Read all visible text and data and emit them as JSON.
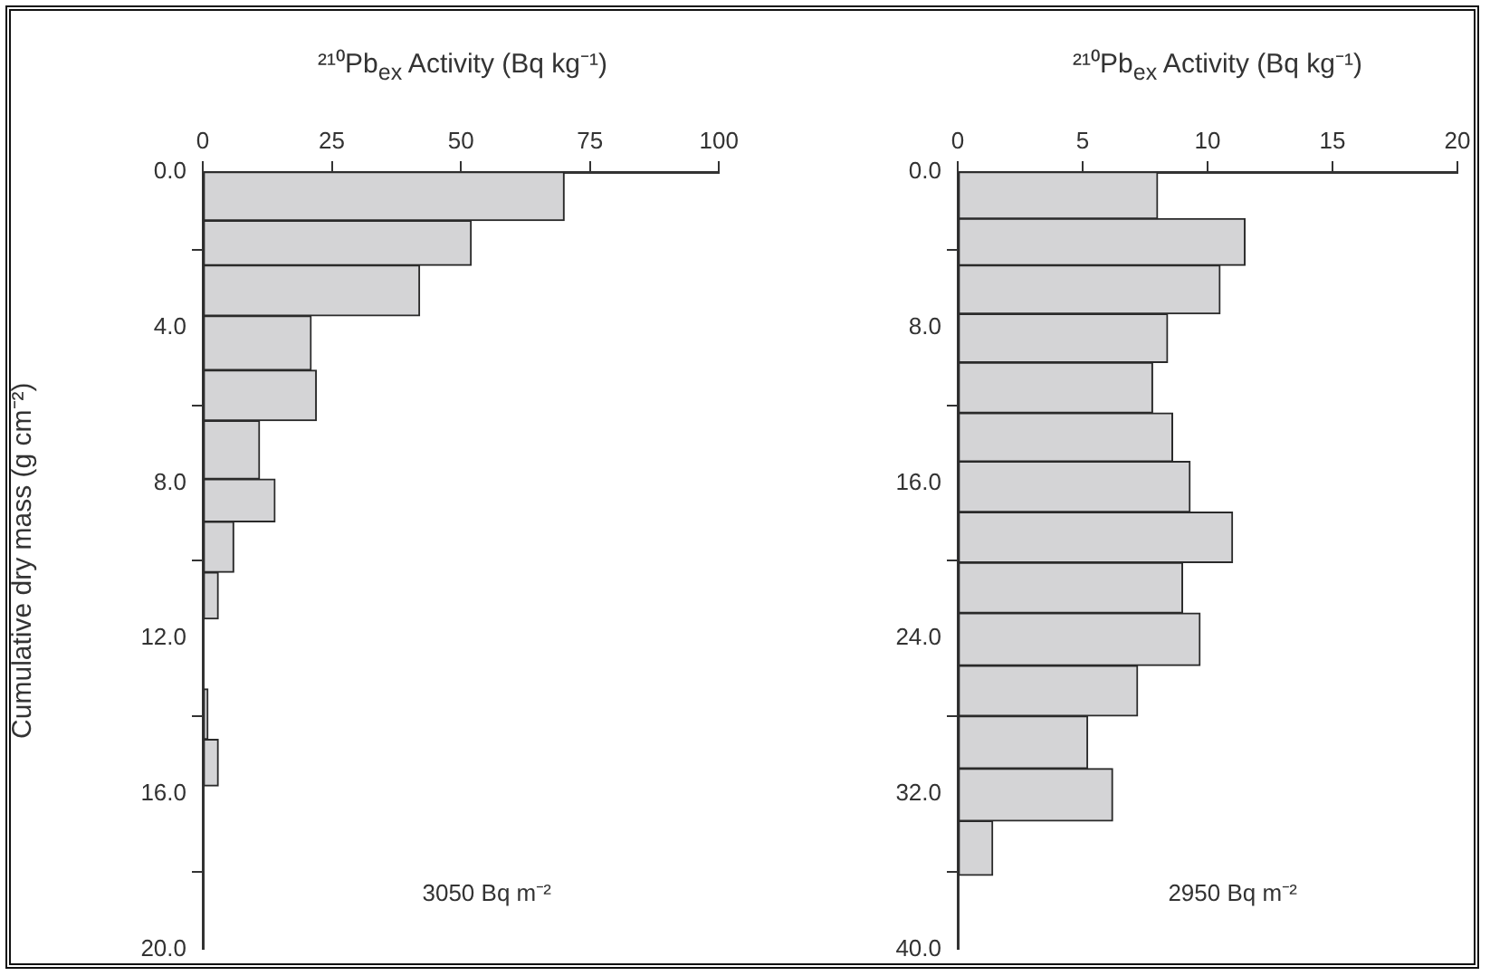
{
  "chart_data": [
    {
      "type": "histogram",
      "orientation": "horizontal",
      "xlabel": "²¹⁰Pb$_{ex}$ Activity (Bq kg⁻¹)",
      "ylabel": "Cumulative dry mass (g cm⁻²)",
      "bins": [
        0,
        1.25,
        2.4,
        3.7,
        5.1,
        6.4,
        7.9,
        9.0,
        10.3,
        11.5,
        13.3,
        14.6,
        15.8
      ],
      "values": [
        70,
        52,
        42,
        21,
        22,
        11,
        14,
        6,
        3,
        null,
        1,
        3
      ],
      "color": "#d4d4d6",
      "xlim": [
        0,
        100
      ],
      "xticks": [
        0,
        25,
        50,
        75,
        100
      ],
      "ylim": [
        20,
        0
      ],
      "yticks": [
        {
          "value": 0,
          "label": "0.0"
        },
        {
          "value": 4,
          "label": "4.0"
        },
        {
          "value": 8,
          "label": "8.0"
        },
        {
          "value": 12,
          "label": "12.0"
        },
        {
          "value": 16,
          "label": "16.0"
        },
        {
          "value": 20,
          "label": "20.0"
        }
      ],
      "annotations": [
        "3050 Bq m⁻²"
      ],
      "grid": false,
      "legend": false
    },
    {
      "type": "histogram",
      "orientation": "horizontal",
      "xlabel": "²¹⁰Pb$_{ex}$ Activity (Bq kg⁻¹)",
      "bins": [
        0,
        2.4,
        4.8,
        7.3,
        9.8,
        12.4,
        14.9,
        17.5,
        20.1,
        22.7,
        25.4,
        28.0,
        30.7,
        33.4,
        36.2
      ],
      "values": [
        8,
        11.5,
        10.5,
        8.4,
        7.8,
        8.6,
        9.3,
        11,
        9,
        9.7,
        7.2,
        5.2,
        6.2,
        1.4
      ],
      "color": "#d4d4d6",
      "xlim": [
        0,
        20
      ],
      "xticks": [
        0,
        5,
        10,
        15,
        20
      ],
      "ylim": [
        40,
        0
      ],
      "yticks": [
        {
          "value": 0,
          "label": "0.0"
        },
        {
          "value": 8,
          "label": "8.0"
        },
        {
          "value": 16,
          "label": "16.0"
        },
        {
          "value": 24,
          "label": "24.0"
        },
        {
          "value": 32,
          "label": "32.0"
        },
        {
          "value": 40,
          "label": "40.0"
        }
      ],
      "annotations": [
        "2950 Bq m⁻²"
      ],
      "grid": false,
      "legend": false
    }
  ]
}
